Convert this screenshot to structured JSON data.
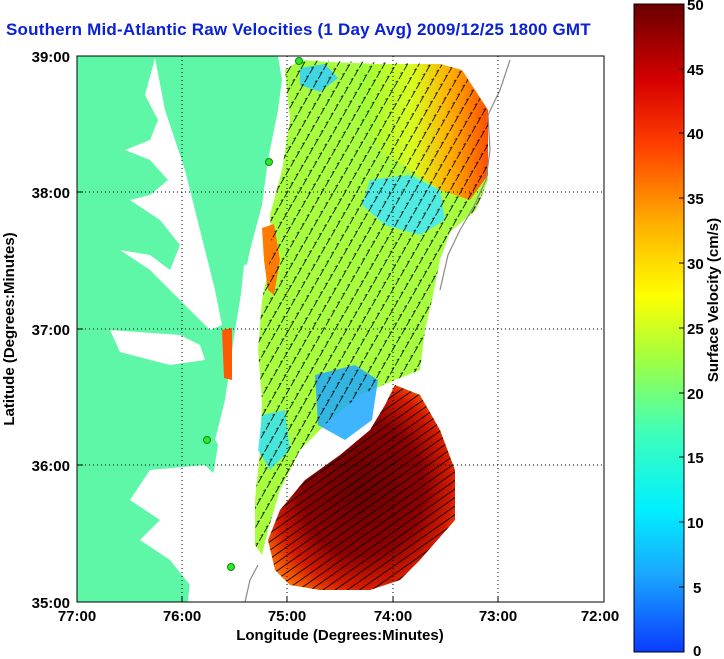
{
  "title": "Southern Mid-Atlantic Raw Velocities (1 Day Avg) 2009/12/25 1800 GMT",
  "x_axis": {
    "label": "Longitude (Degrees:Minutes)",
    "ticks": [
      "77:00",
      "76:00",
      "75:00",
      "74:00",
      "73:00",
      "72:00"
    ]
  },
  "y_axis": {
    "label": "Latitude (Degrees:Minutes)",
    "ticks": [
      "39:00",
      "38:00",
      "37:00",
      "36:00",
      "35:00"
    ]
  },
  "colorbar": {
    "label": "Surface Velocity (cm/s)",
    "min": 0,
    "max": 50,
    "ticks": [
      "0",
      "5",
      "10",
      "15",
      "20",
      "25",
      "30",
      "35",
      "40",
      "45",
      "50"
    ]
  },
  "colors": {
    "title": "#0b21d8",
    "land": "#5ef7a8",
    "station_marker": "#2ee82e"
  }
}
